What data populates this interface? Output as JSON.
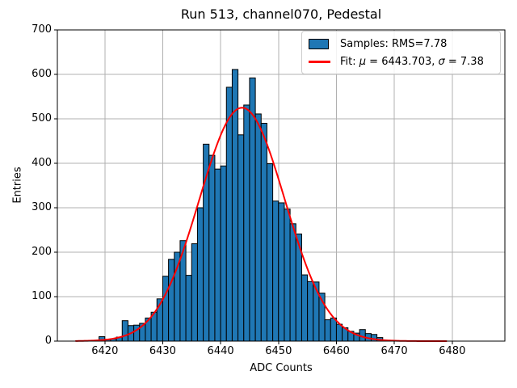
{
  "chart_data": {
    "type": "histogram",
    "title": "Run 513, channel070, Pedestal",
    "xlabel": "ADC Counts",
    "ylabel": "Entries",
    "grid": true,
    "legend_position": "upper right",
    "xlim": [
      6411.8,
      6489.1
    ],
    "ylim": [
      0,
      700
    ],
    "x_ticks": [
      6420,
      6430,
      6440,
      6450,
      6460,
      6470,
      6480
    ],
    "y_ticks": [
      0,
      100,
      200,
      300,
      400,
      500,
      600,
      700
    ],
    "series": [
      {
        "name": "Samples: RMS=7.78",
        "type": "bar",
        "bin_start": 6419,
        "bin_width": 1,
        "counts": [
          10,
          4,
          5,
          9,
          46,
          35,
          36,
          40,
          52,
          65,
          95,
          146,
          184,
          200,
          226,
          148,
          219,
          300,
          443,
          418,
          387,
          394,
          571,
          611,
          464,
          531,
          592,
          511,
          490,
          399,
          315,
          311,
          297,
          264,
          241,
          149,
          134,
          133,
          108,
          48,
          52,
          38,
          30,
          22,
          18,
          26,
          17,
          15,
          8
        ]
      },
      {
        "name": "Fit: μ = 6443.703, σ = 7.38",
        "type": "line",
        "fit": {
          "shape": "gaussian",
          "amplitude": 525,
          "mu": 6443.703,
          "sigma": 7.38,
          "x_start": 6415,
          "x_end": 6479
        }
      }
    ]
  },
  "legend": {
    "samples": "Samples: RMS=7.78",
    "fit_prefix": "Fit: ",
    "mu_symbol": "μ",
    "mu_eq": " = 6443.703, ",
    "sigma_symbol": "σ",
    "sigma_eq": " = 7.38"
  },
  "colors": {
    "hist_fill": "#1f77b4",
    "hist_edge": "#000000",
    "fit_line": "#ff0000",
    "grid": "#b0b0b0",
    "spine": "#000000",
    "legend_border": "#cccccc"
  }
}
